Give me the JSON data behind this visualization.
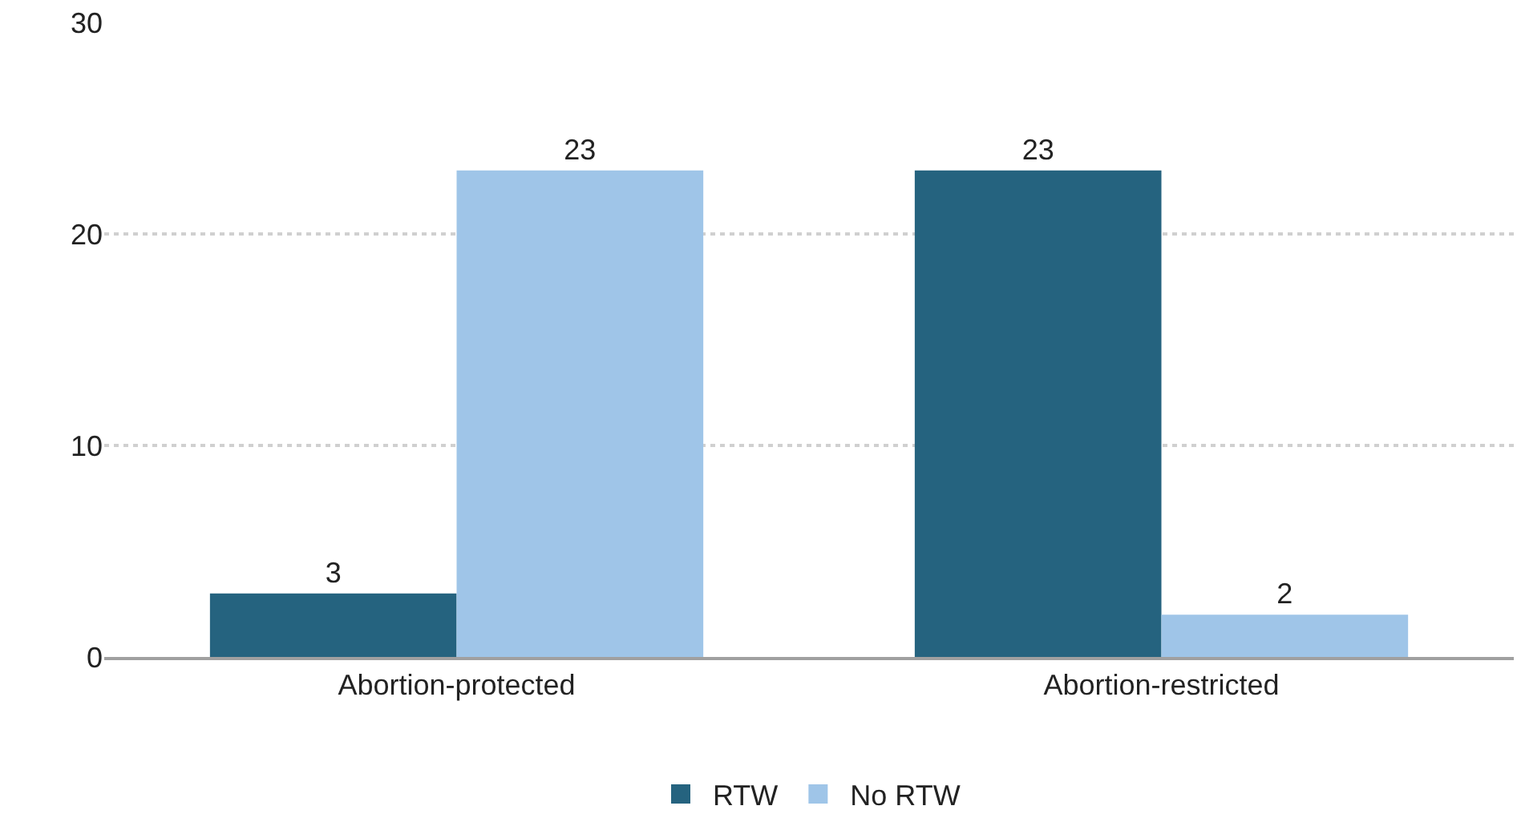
{
  "chart_data": {
    "type": "bar",
    "categories": [
      "Abortion-protected",
      "Abortion-restricted"
    ],
    "series": [
      {
        "name": "RTW",
        "color": "#25637f",
        "values": [
          3,
          23
        ]
      },
      {
        "name": "No RTW",
        "color": "#9fc5e8",
        "values": [
          23,
          2
        ]
      }
    ],
    "ylim": [
      0,
      30
    ],
    "yticks": [
      0,
      10,
      20,
      30
    ],
    "grid": "y",
    "legend": "bottom",
    "data_labels": true
  }
}
